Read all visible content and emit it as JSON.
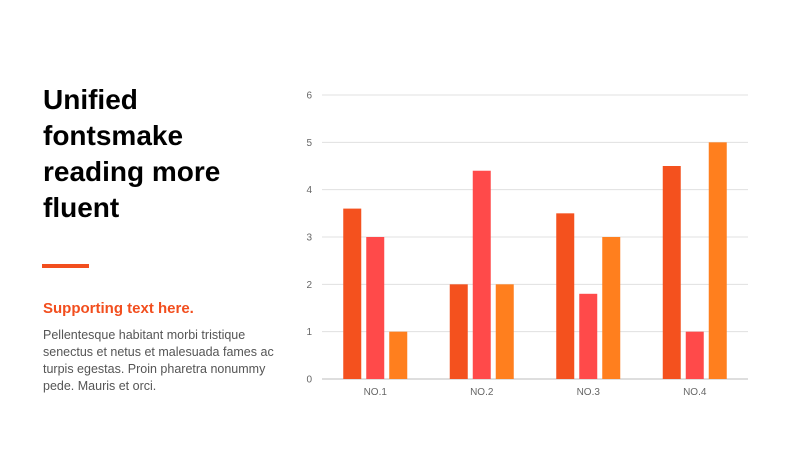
{
  "slide": {
    "title": "Unified fontsmake reading more fluent",
    "subtitle": "Supporting text here.",
    "body": "Pellentesque habitant morbi tristique senectus et netus et malesuada fames ac turpis egestas. Proin pharetra nonummy pede. Mauris et orci.",
    "accent_color": "#f24e1e"
  },
  "chart_data": {
    "type": "bar",
    "categories": [
      "NO.1",
      "NO.2",
      "NO.3",
      "NO.4"
    ],
    "series": [
      {
        "values": [
          3.6,
          2,
          3.5,
          4.5
        ],
        "color": "#f4511e"
      },
      {
        "values": [
          3,
          4.4,
          1.8,
          1
        ],
        "color": "#ff4a4a"
      },
      {
        "values": [
          1,
          2,
          3,
          5
        ],
        "color": "#ff7f1e"
      }
    ],
    "ylim": [
      0,
      6
    ],
    "yticks": [
      "0",
      "1",
      "2",
      "3",
      "4",
      "5",
      "6"
    ],
    "grid": true,
    "title": "",
    "xlabel": "",
    "ylabel": ""
  }
}
